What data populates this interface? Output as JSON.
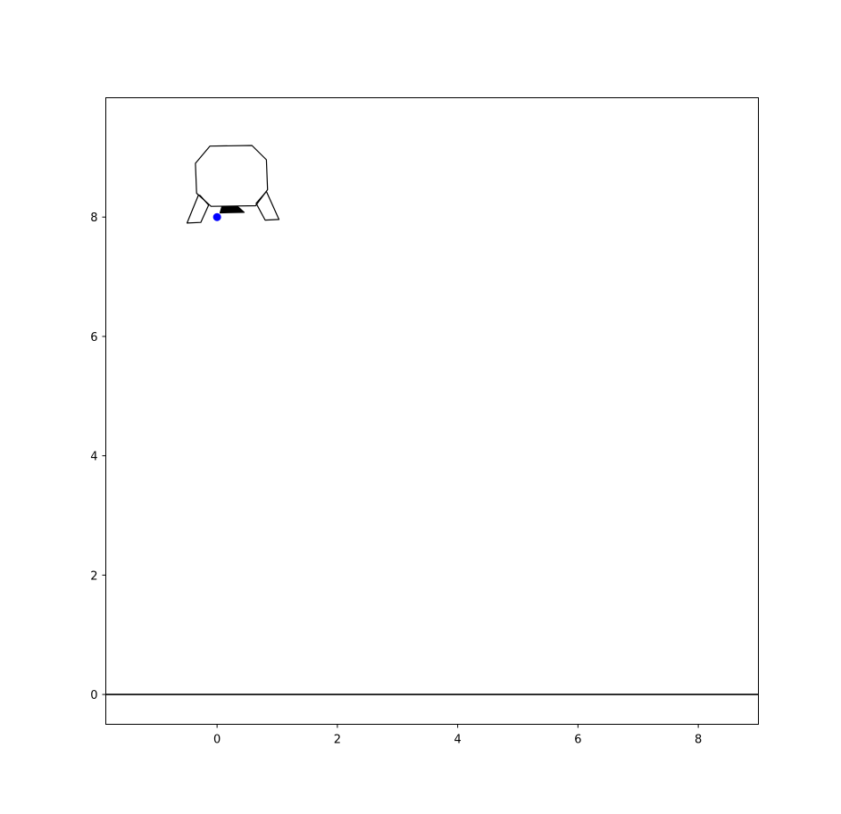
{
  "chart_data": {
    "type": "scatter",
    "title": "",
    "xlabel": "",
    "ylabel": "",
    "xlim": [
      -1.85,
      9.0
    ],
    "ylim": [
      -0.5,
      10.0
    ],
    "grid": false,
    "x_ticks": [
      {
        "value": 0,
        "label": "0"
      },
      {
        "value": 2,
        "label": "2"
      },
      {
        "value": 4,
        "label": "4"
      },
      {
        "value": 6,
        "label": "6"
      },
      {
        "value": 8,
        "label": "8"
      }
    ],
    "y_ticks": [
      {
        "value": 0,
        "label": "0"
      },
      {
        "value": 2,
        "label": "2"
      },
      {
        "value": 4,
        "label": "4"
      },
      {
        "value": 6,
        "label": "6"
      },
      {
        "value": 8,
        "label": "8"
      }
    ],
    "series": [
      {
        "points": [
          {
            "x": 0.0,
            "y": 8.0
          }
        ],
        "color": "#0000ff"
      }
    ],
    "ground_line": {
      "y": 0.0,
      "color": "#000000"
    },
    "lander": {
      "body": [
        [
          -0.12,
          9.19
        ],
        [
          0.58,
          9.2
        ],
        [
          0.82,
          8.96
        ],
        [
          0.84,
          8.46
        ],
        [
          0.64,
          8.19
        ],
        [
          -0.1,
          8.18
        ],
        [
          -0.34,
          8.4
        ],
        [
          -0.36,
          8.9
        ]
      ],
      "left_leg": [
        [
          -0.31,
          8.37
        ],
        [
          -0.28,
          8.36
        ],
        [
          -0.14,
          8.2
        ],
        [
          -0.27,
          7.91
        ],
        [
          -0.5,
          7.9
        ]
      ],
      "right_leg": [
        [
          0.65,
          8.23
        ],
        [
          0.82,
          8.43
        ],
        [
          1.03,
          7.96
        ],
        [
          0.8,
          7.95
        ]
      ],
      "nozzle": [
        [
          0.08,
          8.17
        ],
        [
          0.34,
          8.18
        ],
        [
          0.45,
          8.08
        ],
        [
          0.05,
          8.07
        ]
      ]
    }
  }
}
